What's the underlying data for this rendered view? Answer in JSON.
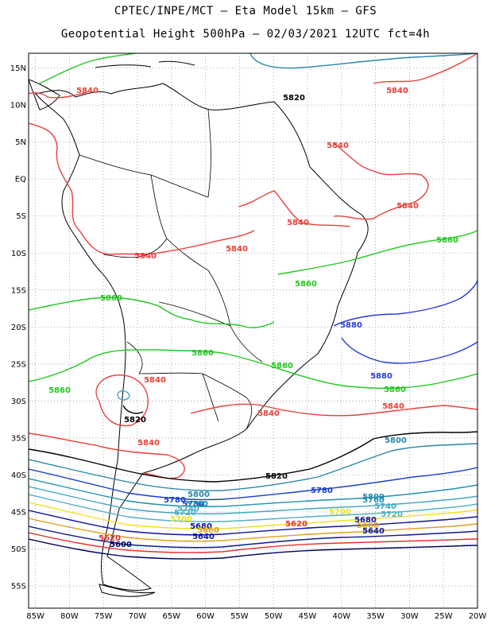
{
  "header": {
    "title_line1": "CPTEC/INPE/MCT –  Eta Model 15km – GFS",
    "title_line2": "Geopotential Height 500hPa – 02/03/2021 12UTC fct=4h"
  },
  "axes": {
    "lat_labels": [
      "15N",
      "10N",
      "5N",
      "EQ",
      "5S",
      "10S",
      "15S",
      "20S",
      "25S",
      "30S",
      "35S",
      "40S",
      "45S",
      "50S",
      "55S"
    ],
    "lon_labels": [
      "85W",
      "80W",
      "75W",
      "70W",
      "65W",
      "60W",
      "55W",
      "50W",
      "45W",
      "40W",
      "35W",
      "30W",
      "25W",
      "20W"
    ],
    "lat_range": [
      -58,
      17
    ],
    "lon_range": [
      -86,
      -20
    ],
    "grid": "dotted"
  },
  "contour_colors": {
    "5840": "#e8403a",
    "5860": "#22c81e",
    "5880": "#2a3cdc",
    "5820": "#000000",
    "5800": "#2a86aa",
    "5780": "#1a40c8",
    "5760": "#2090b0",
    "5740": "#40a8c0",
    "5720": "#50b0c8",
    "5700": "#f0e020",
    "5680": "#1010a0",
    "5660": "#e0a020",
    "5640": "#0a1a90",
    "5620": "#e83030",
    "5600": "#000060"
  },
  "contour_labels": [
    {
      "text": "5840",
      "key": "5840"
    },
    {
      "text": "5840",
      "key": "5840"
    },
    {
      "text": "5840",
      "key": "5840"
    },
    {
      "text": "5840",
      "key": "5840"
    },
    {
      "text": "5840",
      "key": "5840"
    },
    {
      "text": "5840",
      "key": "5840"
    },
    {
      "text": "5840",
      "key": "5840"
    },
    {
      "text": "5840",
      "key": "5840"
    },
    {
      "text": "5840",
      "key": "5840"
    },
    {
      "text": "5840",
      "key": "5840"
    },
    {
      "text": "5840",
      "key": "5840"
    },
    {
      "text": "5820",
      "key": "5820"
    },
    {
      "text": "5820",
      "key": "5820"
    },
    {
      "text": "5820",
      "key": "5820"
    },
    {
      "text": "5860",
      "key": "5860"
    },
    {
      "text": "5860",
      "key": "5860"
    },
    {
      "text": "5860",
      "key": "5860"
    },
    {
      "text": "5860",
      "key": "5860"
    },
    {
      "text": "5860",
      "key": "5860"
    },
    {
      "text": "5860",
      "key": "5860"
    },
    {
      "text": "5860",
      "key": "5860"
    },
    {
      "text": "5880",
      "key": "5880"
    },
    {
      "text": "5880",
      "key": "5880"
    },
    {
      "text": "5800",
      "key": "5800"
    },
    {
      "text": "5800",
      "key": "5800"
    },
    {
      "text": "5800",
      "key": "5800"
    },
    {
      "text": "5780",
      "key": "5780"
    },
    {
      "text": "5780",
      "key": "5780"
    },
    {
      "text": "5780",
      "key": "5780"
    },
    {
      "text": "5760",
      "key": "5760"
    },
    {
      "text": "5760",
      "key": "5760"
    },
    {
      "text": "5740",
      "key": "5740"
    },
    {
      "text": "5740",
      "key": "5740"
    },
    {
      "text": "5720",
      "key": "5720"
    },
    {
      "text": "5720",
      "key": "5720"
    },
    {
      "text": "5700",
      "key": "5700"
    },
    {
      "text": "5700",
      "key": "5700"
    },
    {
      "text": "5680",
      "key": "5680"
    },
    {
      "text": "5680",
      "key": "5680"
    },
    {
      "text": "5660",
      "key": "5660"
    },
    {
      "text": "5660",
      "key": "5660"
    },
    {
      "text": "5640",
      "key": "5640"
    },
    {
      "text": "5640",
      "key": "5640"
    },
    {
      "text": "5620",
      "key": "5620"
    },
    {
      "text": "5620",
      "key": "5620"
    },
    {
      "text": "5600",
      "key": "5600"
    }
  ]
}
